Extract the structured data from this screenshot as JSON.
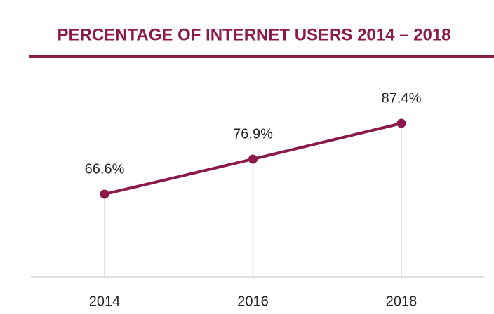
{
  "chart_data": {
    "type": "line",
    "title": "PERCENTAGE OF INTERNET USERS 2014 – 2018",
    "categories": [
      "2014",
      "2016",
      "2018"
    ],
    "series": [
      {
        "name": null,
        "color": "#8b1a4b",
        "values": [
          66.6,
          76.9,
          87.4
        ],
        "value_labels": [
          "66.6%",
          "76.9%",
          "87.4%"
        ]
      }
    ]
  }
}
